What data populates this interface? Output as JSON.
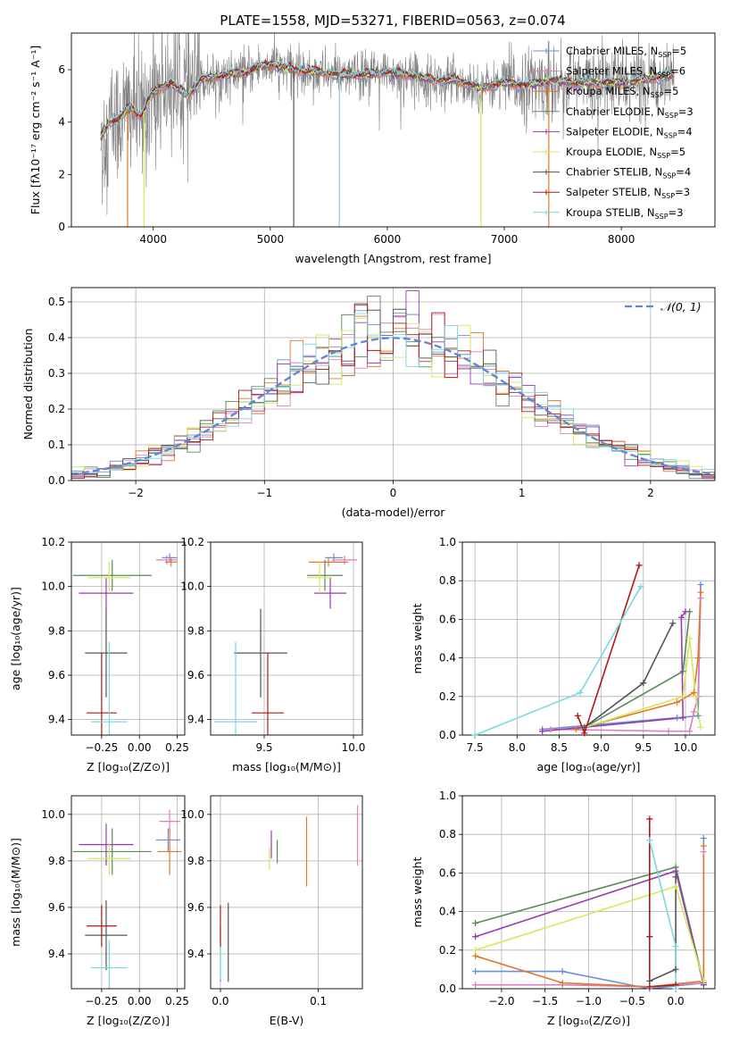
{
  "colors": {
    "chabrier_miles": "#6a8fd8",
    "salpeter_miles": "#e07fbf",
    "kroupa_miles": "#e0782a",
    "chabrier_elodie": "#5a8a5a",
    "salpeter_elodie": "#9a3ab0",
    "kroupa_elodie": "#d4ea5a",
    "chabrier_stelib": "#555555",
    "salpeter_stelib": "#b01818",
    "kroupa_stelib": "#7ad8e0",
    "data_spectrum": "#808080",
    "normal_curve": "#5b87d6",
    "grid": "#b0b0b0"
  },
  "chart_data": [
    {
      "id": "spectrum",
      "type": "line",
      "title": "PLATE=1558, MJD=53271, FIBERID=0563, z=0.074",
      "xlabel": "wavelength [Angstrom, rest frame]",
      "ylabel": "Flux [fλ10⁻¹⁷ erg cm⁻² s⁻¹ A⁻¹]",
      "xlim": [
        3300,
        8800
      ],
      "ylim": [
        0,
        7.4
      ],
      "xticks": [
        4000,
        5000,
        6000,
        7000,
        8000
      ],
      "yticks": [
        0,
        2,
        4,
        6
      ],
      "grid": false,
      "legend_position": "upper right",
      "legend": [
        {
          "key": "chabrier_miles",
          "label": "Chabrier MILES, N",
          "sub": "SSP",
          "suffix": "=5"
        },
        {
          "key": "salpeter_miles",
          "label": "Salpeter MILES, N",
          "sub": "SSP",
          "suffix": "=6"
        },
        {
          "key": "kroupa_miles",
          "label": "Kroupa MILES, N",
          "sub": "SSP",
          "suffix": "=5"
        },
        {
          "key": "chabrier_elodie",
          "label": "Chabrier ELODIE, N",
          "sub": "SSP",
          "suffix": "=3"
        },
        {
          "key": "salpeter_elodie",
          "label": "Salpeter ELODIE, N",
          "sub": "SSP",
          "suffix": "=4"
        },
        {
          "key": "kroupa_elodie",
          "label": "Kroupa ELODIE, N",
          "sub": "SSP",
          "suffix": "=5"
        },
        {
          "key": "chabrier_stelib",
          "label": "Chabrier STELIB, N",
          "sub": "SSP",
          "suffix": "=4"
        },
        {
          "key": "salpeter_stelib",
          "label": "Salpeter STELIB, N",
          "sub": "SSP",
          "suffix": "=3"
        },
        {
          "key": "kroupa_stelib",
          "label": "Kroupa STELIB, N",
          "sub": "SSP",
          "suffix": "=3"
        }
      ],
      "continuum": [
        [
          3550,
          3.4
        ],
        [
          3620,
          4.0
        ],
        [
          3700,
          4.1
        ],
        [
          3800,
          4.6
        ],
        [
          3900,
          4.2
        ],
        [
          3960,
          4.9
        ],
        [
          4050,
          5.3
        ],
        [
          4150,
          5.5
        ],
        [
          4300,
          5.0
        ],
        [
          4400,
          5.6
        ],
        [
          4600,
          5.8
        ],
        [
          4800,
          5.9
        ],
        [
          4900,
          6.1
        ],
        [
          5000,
          6.2
        ],
        [
          5200,
          6.0
        ],
        [
          5400,
          5.9
        ],
        [
          5600,
          5.8
        ],
        [
          5800,
          5.8
        ],
        [
          6000,
          5.9
        ],
        [
          6200,
          5.8
        ],
        [
          6400,
          5.6
        ],
        [
          6600,
          5.6
        ],
        [
          6800,
          5.3
        ],
        [
          7000,
          5.5
        ],
        [
          7200,
          5.4
        ],
        [
          7400,
          5.6
        ],
        [
          7600,
          5.5
        ],
        [
          7800,
          5.5
        ],
        [
          8000,
          5.5
        ],
        [
          8200,
          5.6
        ],
        [
          8400,
          5.8
        ]
      ],
      "data_range": [
        3550,
        8450
      ],
      "model_spikes": [
        {
          "key": "kroupa_miles",
          "x": 3780,
          "low": 0
        },
        {
          "key": "kroupa_elodie",
          "x": 3920,
          "low": 0
        },
        {
          "key": "chabrier_stelib",
          "x": 5200,
          "low": 0
        },
        {
          "key": "kroupa_stelib",
          "x": 5590,
          "low": 0
        },
        {
          "key": "kroupa_elodie",
          "x": 6800,
          "low": 0
        },
        {
          "key": "kroupa_miles",
          "x": 7380,
          "low": 0
        }
      ]
    },
    {
      "id": "residuals",
      "type": "histogram",
      "xlabel": "(data-model)/error",
      "ylabel": "Normed distribution",
      "xlim": [
        -2.5,
        2.5
      ],
      "ylim": [
        0,
        0.54
      ],
      "xticks": [
        -2,
        -1,
        0,
        1,
        2
      ],
      "yticks": [
        0.0,
        0.1,
        0.2,
        0.3,
        0.4,
        0.5
      ],
      "grid": true,
      "legend_position": "upper right",
      "legend": [
        {
          "key": "normal_curve",
          "label": "𝒩(0, 1)",
          "style": "dashed"
        }
      ],
      "bin_width": 0.1,
      "gaussian": {
        "mean": 0,
        "sigma": 1
      }
    },
    {
      "id": "age_vs_Z",
      "type": "errorbar",
      "xlabel": "Z [log₁₀(Z/Z⊙)]",
      "ylabel": "age  [log₁₀(age/yr)]",
      "xlim": [
        -0.45,
        0.3
      ],
      "ylim": [
        9.33,
        10.2
      ],
      "xticks": [
        -0.25,
        0.0,
        0.25
      ],
      "yticks": [
        9.4,
        9.6,
        9.8,
        10.0,
        10.2
      ],
      "grid": true,
      "points": [
        {
          "key": "chabrier_miles",
          "x": 0.2,
          "xerr": 0.05,
          "y": 10.13,
          "yerr": 0.02
        },
        {
          "key": "salpeter_miles",
          "x": 0.18,
          "xerr": 0.07,
          "y": 10.12,
          "yerr": 0.02
        },
        {
          "key": "kroupa_miles",
          "x": 0.21,
          "xerr": 0.04,
          "y": 10.11,
          "yerr": 0.02
        },
        {
          "key": "chabrier_elodie",
          "x": -0.18,
          "xerr": 0.26,
          "y": 10.05,
          "yerr": 0.07
        },
        {
          "key": "salpeter_elodie",
          "x": -0.22,
          "xerr": 0.18,
          "y": 9.97,
          "yerr": 0.07
        },
        {
          "key": "kroupa_elodie",
          "x": -0.2,
          "xerr": 0.14,
          "y": 10.04,
          "yerr": 0.07
        },
        {
          "key": "chabrier_stelib",
          "x": -0.22,
          "xerr": 0.14,
          "y": 9.7,
          "yerr": 0.2
        },
        {
          "key": "salpeter_stelib",
          "x": -0.25,
          "xerr": 0.1,
          "y": 9.43,
          "yerr": 0.27
        },
        {
          "key": "kroupa_stelib",
          "x": -0.2,
          "xerr": 0.12,
          "y": 9.39,
          "yerr": 0.36
        }
      ]
    },
    {
      "id": "age_vs_mass",
      "type": "errorbar",
      "xlabel": "mass [log₁₀(M/M⊙)]",
      "ylabel": "",
      "xlim": [
        9.2,
        10.05
      ],
      "ylim": [
        9.33,
        10.2
      ],
      "xticks": [
        9.5,
        10.0
      ],
      "yticks": [
        9.4,
        9.6,
        9.8,
        10.0,
        10.2
      ],
      "grid": true,
      "points": [
        {
          "key": "chabrier_miles",
          "x": 9.89,
          "xerr": 0.05,
          "y": 10.13,
          "yerr": 0.02
        },
        {
          "key": "salpeter_miles",
          "x": 9.95,
          "xerr": 0.07,
          "y": 10.12,
          "yerr": 0.02
        },
        {
          "key": "kroupa_miles",
          "x": 9.86,
          "xerr": 0.11,
          "y": 10.11,
          "yerr": 0.02
        },
        {
          "key": "chabrier_elodie",
          "x": 9.84,
          "xerr": 0.1,
          "y": 10.05,
          "yerr": 0.07
        },
        {
          "key": "salpeter_elodie",
          "x": 9.87,
          "xerr": 0.09,
          "y": 9.97,
          "yerr": 0.07
        },
        {
          "key": "kroupa_elodie",
          "x": 9.81,
          "xerr": 0.07,
          "y": 10.04,
          "yerr": 0.07
        },
        {
          "key": "chabrier_stelib",
          "x": 9.48,
          "xerr": 0.15,
          "y": 9.7,
          "yerr": 0.2
        },
        {
          "key": "salpeter_stelib",
          "x": 9.52,
          "xerr": 0.09,
          "y": 9.43,
          "yerr": 0.27
        },
        {
          "key": "kroupa_stelib",
          "x": 9.34,
          "xerr": 0.12,
          "y": 9.39,
          "yerr": 0.36
        }
      ]
    },
    {
      "id": "weight_vs_age",
      "type": "line",
      "xlabel": "age  [log₁₀(age/yr)]",
      "ylabel": "mass weight",
      "xlim": [
        7.35,
        10.35
      ],
      "ylim": [
        0,
        1.0
      ],
      "xticks": [
        7.5,
        8.0,
        8.5,
        9.0,
        9.5,
        10.0
      ],
      "yticks": [
        0.0,
        0.2,
        0.4,
        0.6,
        0.8,
        1.0
      ],
      "grid": true,
      "series": [
        {
          "key": "chabrier_miles",
          "x": [
            8.3,
            9.9,
            10.15,
            10.18
          ],
          "y": [
            0.03,
            0.09,
            0.1,
            0.78
          ]
        },
        {
          "key": "salpeter_miles",
          "x": [
            8.4,
            9.8,
            10.05,
            10.1,
            10.15,
            10.18
          ],
          "y": [
            0.03,
            0.02,
            0.02,
            0.12,
            0.2,
            0.71
          ]
        },
        {
          "key": "kroupa_miles",
          "x": [
            8.7,
            9.9,
            10.1,
            10.15,
            10.18
          ],
          "y": [
            0.03,
            0.17,
            0.22,
            0.4,
            0.74
          ]
        },
        {
          "key": "chabrier_elodie",
          "x": [
            8.8,
            9.97,
            10.05
          ],
          "y": [
            0.04,
            0.33,
            0.64
          ]
        },
        {
          "key": "salpeter_elodie",
          "x": [
            8.3,
            9.97,
            9.95,
            10.0
          ],
          "y": [
            0.02,
            0.09,
            0.61,
            0.64
          ]
        },
        {
          "key": "kroupa_elodie",
          "x": [
            8.8,
            9.97,
            10.05,
            10.12,
            10.18
          ],
          "y": [
            0.04,
            0.2,
            0.5,
            0.2,
            0.04
          ]
        },
        {
          "key": "chabrier_stelib",
          "x": [
            8.8,
            9.5,
            9.85
          ],
          "y": [
            0.04,
            0.27,
            0.58
          ]
        },
        {
          "key": "salpeter_stelib",
          "x": [
            8.72,
            8.8,
            9.45
          ],
          "y": [
            0.1,
            0.01,
            0.88
          ]
        },
        {
          "key": "kroupa_stelib",
          "x": [
            7.5,
            8.75,
            9.47
          ],
          "y": [
            0.0,
            0.22,
            0.77
          ]
        }
      ]
    },
    {
      "id": "mass_vs_Z",
      "type": "errorbar",
      "xlabel": "Z [log₁₀(Z/Z⊙)]",
      "ylabel": "mass [log₁₀(M/M⊙)]",
      "xlim": [
        -0.45,
        0.3
      ],
      "ylim": [
        9.25,
        10.08
      ],
      "xticks": [
        -0.25,
        0.0,
        0.25
      ],
      "yticks": [
        9.4,
        9.6,
        9.8,
        10.0
      ],
      "grid": true,
      "points": [
        {
          "key": "chabrier_miles",
          "x": 0.19,
          "xerr": 0.08,
          "y": 9.89,
          "yerr": 0.05
        },
        {
          "key": "salpeter_miles",
          "x": 0.2,
          "xerr": 0.07,
          "y": 9.97,
          "yerr": 0.05
        },
        {
          "key": "kroupa_miles",
          "x": 0.2,
          "xerr": 0.08,
          "y": 9.84,
          "yerr": 0.1
        },
        {
          "key": "chabrier_elodie",
          "x": -0.18,
          "xerr": 0.26,
          "y": 9.84,
          "yerr": 0.1
        },
        {
          "key": "salpeter_elodie",
          "x": -0.22,
          "xerr": 0.18,
          "y": 9.87,
          "yerr": 0.09
        },
        {
          "key": "kroupa_elodie",
          "x": -0.2,
          "xerr": 0.14,
          "y": 9.81,
          "yerr": 0.07
        },
        {
          "key": "chabrier_stelib",
          "x": -0.22,
          "xerr": 0.14,
          "y": 9.48,
          "yerr": 0.15
        },
        {
          "key": "salpeter_stelib",
          "x": -0.25,
          "xerr": 0.1,
          "y": 9.52,
          "yerr": 0.09
        },
        {
          "key": "kroupa_stelib",
          "x": -0.2,
          "xerr": 0.12,
          "y": 9.34,
          "yerr": 0.12
        }
      ]
    },
    {
      "id": "mass_vs_ebv",
      "type": "errorbar",
      "xlabel": "E(B-V)",
      "ylabel": "",
      "xlim": [
        -0.01,
        0.145
      ],
      "ylim": [
        9.25,
        10.08
      ],
      "xticks": [
        0.0,
        0.1
      ],
      "yticks": [
        9.4,
        9.6,
        9.8,
        10.0
      ],
      "grid": true,
      "points": [
        {
          "key": "chabrier_miles",
          "x": 0.0,
          "xerr": 0,
          "y": 9.4,
          "yerr": 0.12
        },
        {
          "key": "salpeter_miles",
          "x": 0.14,
          "xerr": 0,
          "y": 9.91,
          "yerr": 0.13
        },
        {
          "key": "kroupa_miles",
          "x": 0.088,
          "xerr": 0,
          "y": 9.84,
          "yerr": 0.15
        },
        {
          "key": "chabrier_elodie",
          "x": 0.058,
          "xerr": 0,
          "y": 9.84,
          "yerr": 0.05
        },
        {
          "key": "salpeter_elodie",
          "x": 0.052,
          "xerr": 0,
          "y": 9.87,
          "yerr": 0.06
        },
        {
          "key": "kroupa_elodie",
          "x": 0.05,
          "xerr": 0,
          "y": 9.81,
          "yerr": 0.05
        },
        {
          "key": "chabrier_stelib",
          "x": 0.008,
          "xerr": 0,
          "y": 9.45,
          "yerr": 0.17
        },
        {
          "key": "salpeter_stelib",
          "x": 0.0,
          "xerr": 0,
          "y": 9.52,
          "yerr": 0.09
        },
        {
          "key": "kroupa_stelib",
          "x": 0.0,
          "xerr": 0,
          "y": 9.36,
          "yerr": 0.07
        }
      ]
    },
    {
      "id": "weight_vs_Z",
      "type": "line",
      "xlabel": "Z [log₁₀(Z/Z⊙)]",
      "ylabel": "mass weight",
      "xlim": [
        -2.45,
        0.45
      ],
      "ylim": [
        0,
        1.0
      ],
      "xticks": [
        -2.0,
        -1.5,
        -1.0,
        -0.5,
        0.0
      ],
      "yticks": [
        0.0,
        0.2,
        0.4,
        0.6,
        0.8,
        1.0
      ],
      "grid": true,
      "series": [
        {
          "key": "chabrier_miles",
          "x": [
            -2.3,
            -1.3,
            -0.3,
            0.32,
            0.32
          ],
          "y": [
            0.09,
            0.09,
            0.0,
            0.03,
            0.78
          ]
        },
        {
          "key": "salpeter_miles",
          "x": [
            -2.3,
            -1.3,
            -0.3,
            0.32,
            0.32
          ],
          "y": [
            0.02,
            0.02,
            0.01,
            0.03,
            0.71
          ]
        },
        {
          "key": "kroupa_miles",
          "x": [
            -2.3,
            -1.3,
            -0.3,
            0.32,
            0.32
          ],
          "y": [
            0.17,
            0.03,
            0.01,
            0.04,
            0.74
          ]
        },
        {
          "key": "chabrier_elodie",
          "x": [
            -2.3,
            0.0,
            0.32
          ],
          "y": [
            0.34,
            0.63,
            0.03
          ]
        },
        {
          "key": "salpeter_elodie",
          "x": [
            -2.3,
            0.0,
            0.32
          ],
          "y": [
            0.27,
            0.61,
            0.02
          ]
        },
        {
          "key": "kroupa_elodie",
          "x": [
            -2.3,
            0.0,
            0.32
          ],
          "y": [
            0.2,
            0.53,
            0.04
          ]
        },
        {
          "key": "chabrier_stelib",
          "x": [
            -0.3,
            0.0,
            0.0
          ],
          "y": [
            0.04,
            0.1,
            0.58
          ]
        },
        {
          "key": "salpeter_stelib",
          "x": [
            -0.3,
            -0.3,
            -0.3,
            0.0
          ],
          "y": [
            0.88,
            0.27,
            0.01,
            0.02
          ]
        },
        {
          "key": "kroupa_stelib",
          "x": [
            -0.3,
            0.0,
            0.0
          ],
          "y": [
            0.77,
            0.22,
            0.0
          ]
        }
      ]
    }
  ]
}
